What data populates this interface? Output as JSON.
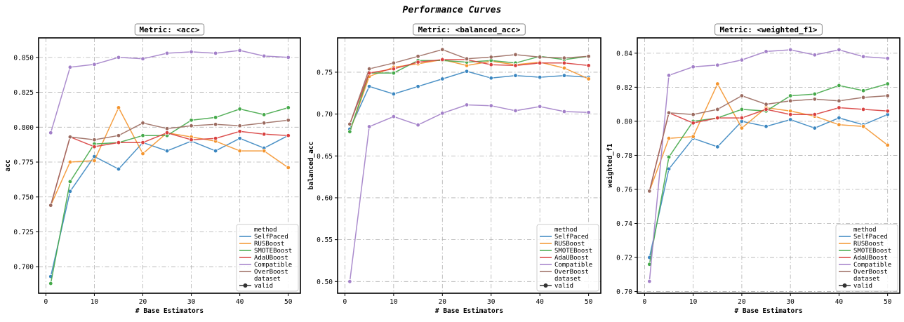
{
  "figure": {
    "title": "Performance Curves"
  },
  "colors": {
    "SelfPaced": "#3a86c0",
    "RUSBoost": "#f4952f",
    "SMOTEBoost": "#45a94a",
    "AdaUBoost": "#d8403f",
    "Compatible": "#a27fc8",
    "OverBoost": "#9b6b60",
    "grid": "#b0b0b0",
    "frame": "#000000"
  },
  "legend": {
    "method_title": "method",
    "dataset_title": "dataset",
    "dataset_entry": "valid",
    "placement": "lower-right"
  },
  "chart_data": [
    {
      "type": "line",
      "title": "Metric: <acc>",
      "xlabel": "# Base Estimators",
      "ylabel": "acc",
      "x": [
        1,
        5,
        10,
        15,
        20,
        25,
        30,
        35,
        40,
        45,
        50
      ],
      "xticks": [
        0,
        10,
        20,
        30,
        40,
        50
      ],
      "xlim": [
        -1.5,
        52.5
      ],
      "yticks": [
        0.7,
        0.725,
        0.75,
        0.775,
        0.8,
        0.825,
        0.85
      ],
      "ytick_labels": [
        "0.700",
        "0.725",
        "0.750",
        "0.775",
        "0.800",
        "0.825",
        "0.850"
      ],
      "ylim": [
        0.681,
        0.864
      ],
      "grid": true,
      "series": [
        {
          "name": "SelfPaced",
          "values": [
            0.693,
            0.754,
            0.779,
            0.77,
            0.789,
            0.783,
            0.79,
            0.783,
            0.792,
            0.785,
            0.794
          ]
        },
        {
          "name": "RUSBoost",
          "values": [
            0.744,
            0.775,
            0.776,
            0.814,
            0.781,
            0.796,
            0.793,
            0.79,
            0.783,
            0.783,
            0.771
          ]
        },
        {
          "name": "SMOTEBoost",
          "values": [
            0.688,
            0.761,
            0.788,
            0.789,
            0.794,
            0.794,
            0.805,
            0.807,
            0.813,
            0.809,
            0.814
          ]
        },
        {
          "name": "AdaUBoost",
          "values": [
            0.744,
            0.793,
            0.786,
            0.789,
            0.789,
            0.796,
            0.791,
            0.792,
            0.797,
            0.795,
            0.794
          ]
        },
        {
          "name": "Compatible",
          "values": [
            0.796,
            0.843,
            0.845,
            0.85,
            0.849,
            0.853,
            0.854,
            0.853,
            0.855,
            0.851,
            0.85
          ]
        },
        {
          "name": "OverBoost",
          "values": [
            0.744,
            0.793,
            0.791,
            0.794,
            0.803,
            0.799,
            0.801,
            0.802,
            0.801,
            0.803,
            0.805
          ]
        }
      ]
    },
    {
      "type": "line",
      "title": "Metric: <balanced_acc>",
      "xlabel": "# Base Estimators",
      "ylabel": "balanced_acc",
      "x": [
        1,
        5,
        10,
        15,
        20,
        25,
        30,
        35,
        40,
        45,
        50
      ],
      "xticks": [
        0,
        10,
        20,
        30,
        40,
        50
      ],
      "xlim": [
        -1.5,
        52.5
      ],
      "yticks": [
        0.5,
        0.55,
        0.6,
        0.65,
        0.7,
        0.75
      ],
      "ytick_labels": [
        "0.50",
        "0.55",
        "0.60",
        "0.65",
        "0.70",
        "0.75"
      ],
      "ylim": [
        0.486,
        0.791
      ],
      "grid": true,
      "series": [
        {
          "name": "SelfPaced",
          "values": [
            0.682,
            0.733,
            0.724,
            0.733,
            0.742,
            0.751,
            0.743,
            0.746,
            0.744,
            0.746,
            0.744
          ]
        },
        {
          "name": "RUSBoost",
          "values": [
            0.679,
            0.745,
            0.756,
            0.76,
            0.765,
            0.758,
            0.763,
            0.759,
            0.762,
            0.755,
            0.742
          ]
        },
        {
          "name": "SMOTEBoost",
          "values": [
            0.679,
            0.749,
            0.749,
            0.764,
            0.764,
            0.762,
            0.764,
            0.761,
            0.769,
            0.765,
            0.769
          ]
        },
        {
          "name": "AdaUBoost",
          "values": [
            0.688,
            0.749,
            0.754,
            0.762,
            0.765,
            0.765,
            0.759,
            0.758,
            0.761,
            0.761,
            0.758
          ]
        },
        {
          "name": "Compatible",
          "values": [
            0.5,
            0.685,
            0.697,
            0.687,
            0.701,
            0.711,
            0.71,
            0.704,
            0.709,
            0.703,
            0.702
          ]
        },
        {
          "name": "OverBoost",
          "values": [
            0.688,
            0.754,
            0.761,
            0.769,
            0.777,
            0.766,
            0.768,
            0.771,
            0.768,
            0.767,
            0.769
          ]
        }
      ]
    },
    {
      "type": "line",
      "title": "Metric: <weighted_f1>",
      "xlabel": "# Base Estimators",
      "ylabel": "weighted_f1",
      "x": [
        1,
        5,
        10,
        15,
        20,
        25,
        30,
        35,
        40,
        45,
        50
      ],
      "xticks": [
        0,
        10,
        20,
        30,
        40,
        50
      ],
      "xlim": [
        -1.5,
        52.5
      ],
      "yticks": [
        0.7,
        0.72,
        0.74,
        0.76,
        0.78,
        0.8,
        0.82,
        0.84
      ],
      "ytick_labels": [
        "0.70",
        "0.72",
        "0.74",
        "0.76",
        "0.78",
        "0.80",
        "0.82",
        "0.84"
      ],
      "ylim": [
        0.699,
        0.849
      ],
      "grid": true,
      "series": [
        {
          "name": "SelfPaced",
          "values": [
            0.72,
            0.772,
            0.79,
            0.785,
            0.8,
            0.797,
            0.801,
            0.796,
            0.802,
            0.798,
            0.804
          ]
        },
        {
          "name": "RUSBoost",
          "values": [
            0.759,
            0.79,
            0.791,
            0.822,
            0.796,
            0.808,
            0.806,
            0.803,
            0.798,
            0.797,
            0.786
          ]
        },
        {
          "name": "SMOTEBoost",
          "values": [
            0.716,
            0.779,
            0.8,
            0.802,
            0.807,
            0.806,
            0.815,
            0.816,
            0.821,
            0.818,
            0.822
          ]
        },
        {
          "name": "AdaUBoost",
          "values": [
            0.759,
            0.805,
            0.799,
            0.802,
            0.802,
            0.807,
            0.804,
            0.804,
            0.808,
            0.807,
            0.806
          ]
        },
        {
          "name": "Compatible",
          "values": [
            0.706,
            0.827,
            0.832,
            0.833,
            0.836,
            0.841,
            0.842,
            0.839,
            0.842,
            0.838,
            0.837
          ]
        },
        {
          "name": "OverBoost",
          "values": [
            0.759,
            0.805,
            0.804,
            0.807,
            0.815,
            0.81,
            0.812,
            0.813,
            0.812,
            0.814,
            0.815
          ]
        }
      ]
    }
  ]
}
